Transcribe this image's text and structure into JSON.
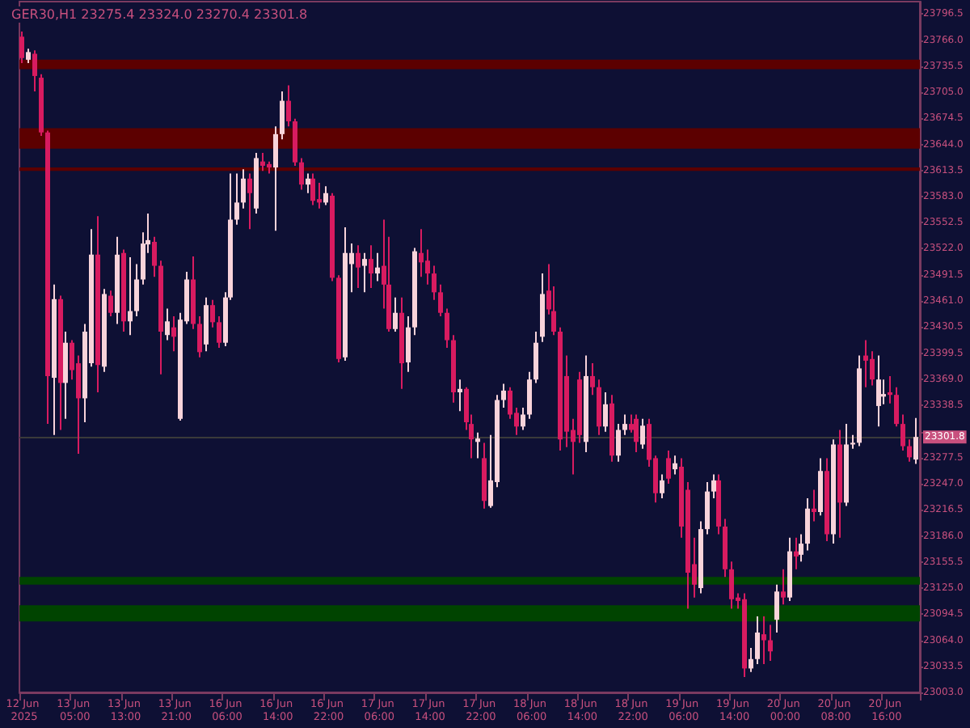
{
  "chart_data": {
    "type": "candlestick",
    "title": "GER30,H1 23275.4 23324.0 23270.4 23301.8",
    "categories": [
      "12 Jun 2025",
      null,
      null,
      null,
      null,
      null,
      null,
      null,
      "13 Jun 05:00",
      null,
      null,
      null,
      null,
      null,
      null,
      null,
      "13 Jun 13:00",
      null,
      null,
      null,
      null,
      null,
      null,
      null,
      "13 Jun 21:00",
      null,
      null,
      null,
      null,
      null,
      null,
      null,
      "16 Jun 06:00",
      null,
      null,
      null,
      null,
      null,
      null,
      null,
      "16 Jun 14:00",
      null,
      null,
      null,
      null,
      null,
      null,
      null,
      "16 Jun 22:00",
      null,
      null,
      null,
      null,
      null,
      null,
      null,
      "17 Jun 06:00",
      null,
      null,
      null,
      null,
      null,
      null,
      null,
      "17 Jun 14:00",
      null,
      null,
      null,
      null,
      null,
      null,
      null,
      "17 Jun 22:00",
      null,
      null,
      null,
      null,
      null,
      null,
      null,
      "18 Jun 06:00",
      null,
      null,
      null,
      null,
      null,
      null,
      null,
      "18 Jun 14:00",
      null,
      null,
      null,
      null,
      null,
      null,
      null,
      "18 Jun 22:00",
      null,
      null,
      null,
      null,
      null,
      null,
      null,
      "19 Jun 06:00",
      null,
      null,
      null,
      null,
      null,
      null,
      null,
      "19 Jun 14:00",
      null,
      null,
      null,
      null,
      null,
      null,
      null,
      "20 Jun 00:00",
      null,
      null,
      null,
      null,
      null,
      null,
      null,
      "20 Jun 08:00",
      null,
      null,
      null,
      null,
      null,
      null,
      null,
      "20 Jun 16:00",
      null,
      null,
      null,
      null,
      null
    ],
    "ohlc": [
      [
        23770,
        23776,
        23739,
        23745
      ],
      [
        23743,
        23756,
        23739,
        23752
      ],
      [
        23750,
        23754,
        23706,
        23724
      ],
      [
        23722,
        23726,
        23654,
        23658
      ],
      [
        23658,
        23660,
        23317,
        23373
      ],
      [
        23371,
        23480,
        23304,
        23463
      ],
      [
        23463,
        23467,
        23310,
        23365
      ],
      [
        23365,
        23425,
        23323,
        23412
      ],
      [
        23412,
        23415,
        23369,
        23380
      ],
      [
        23388,
        23397,
        23282,
        23347
      ],
      [
        23347,
        23434,
        23319,
        23425
      ],
      [
        23388,
        23545,
        23384,
        23515
      ],
      [
        23515,
        23560,
        23354,
        23386
      ],
      [
        23384,
        23475,
        23378,
        23469
      ],
      [
        23467,
        23473,
        23443,
        23447
      ],
      [
        23447,
        23536,
        23434,
        23515
      ],
      [
        23517,
        23521,
        23425,
        23437
      ],
      [
        23437,
        23512,
        23421,
        23449
      ],
      [
        23449,
        23504,
        23443,
        23486
      ],
      [
        23486,
        23541,
        23480,
        23528
      ],
      [
        23527,
        23563,
        23517,
        23532
      ],
      [
        23530,
        23536,
        23489,
        23502
      ],
      [
        23502,
        23508,
        23375,
        23425
      ],
      [
        23421,
        23452,
        23415,
        23437
      ],
      [
        23430,
        23443,
        23402,
        23419
      ],
      [
        23323,
        23447,
        23321,
        23439
      ],
      [
        23437,
        23495,
        23434,
        23486
      ],
      [
        23486,
        23513,
        23428,
        23434
      ],
      [
        23434,
        23443,
        23395,
        23401
      ],
      [
        23410,
        23465,
        23402,
        23456
      ],
      [
        23456,
        23462,
        23430,
        23436
      ],
      [
        23436,
        23443,
        23406,
        23412
      ],
      [
        23412,
        23471,
        23408,
        23465
      ],
      [
        23465,
        23610,
        23462,
        23556
      ],
      [
        23556,
        23610,
        23550,
        23576
      ],
      [
        23576,
        23615,
        23569,
        23604
      ],
      [
        23604,
        23610,
        23545,
        23587
      ],
      [
        23569,
        23634,
        23563,
        23628
      ],
      [
        23624,
        23634,
        23613,
        23619
      ],
      [
        23621,
        23624,
        23610,
        23617
      ],
      [
        23617,
        23665,
        23543,
        23656
      ],
      [
        23656,
        23706,
        23650,
        23695
      ],
      [
        23695,
        23713,
        23665,
        23671
      ],
      [
        23671,
        23674,
        23619,
        23623
      ],
      [
        23623,
        23628,
        23591,
        23597
      ],
      [
        23597,
        23610,
        23587,
        23604
      ],
      [
        23604,
        23610,
        23573,
        23578
      ],
      [
        23580,
        23599,
        23569,
        23576
      ],
      [
        23576,
        23595,
        23573,
        23587
      ],
      [
        23584,
        23587,
        23484,
        23488
      ],
      [
        23488,
        23491,
        23389,
        23393
      ],
      [
        23395,
        23547,
        23391,
        23517
      ],
      [
        23504,
        23528,
        23471,
        23517
      ],
      [
        23517,
        23526,
        23476,
        23500
      ],
      [
        23502,
        23517,
        23471,
        23510
      ],
      [
        23510,
        23526,
        23476,
        23493
      ],
      [
        23493,
        23517,
        23484,
        23500
      ],
      [
        23502,
        23556,
        23452,
        23480
      ],
      [
        23480,
        23536,
        23425,
        23428
      ],
      [
        23428,
        23465,
        23425,
        23447
      ],
      [
        23447,
        23465,
        23358,
        23388
      ],
      [
        23389,
        23443,
        23378,
        23430
      ],
      [
        23430,
        23523,
        23421,
        23519
      ],
      [
        23517,
        23545,
        23489,
        23506
      ],
      [
        23508,
        23521,
        23480,
        23493
      ],
      [
        23493,
        23502,
        23462,
        23471
      ],
      [
        23471,
        23480,
        23443,
        23447
      ],
      [
        23447,
        23452,
        23406,
        23415
      ],
      [
        23415,
        23421,
        23342,
        23354
      ],
      [
        23354,
        23369,
        23332,
        23358
      ],
      [
        23358,
        23360,
        23310,
        23319
      ],
      [
        23317,
        23328,
        23277,
        23299
      ],
      [
        23296,
        23307,
        23277,
        23300
      ],
      [
        23277,
        23295,
        23218,
        23227
      ],
      [
        23221,
        23304,
        23219,
        23251
      ],
      [
        23249,
        23351,
        23243,
        23345
      ],
      [
        23345,
        23364,
        23336,
        23356
      ],
      [
        23356,
        23360,
        23323,
        23328
      ],
      [
        23330,
        23336,
        23304,
        23314
      ],
      [
        23314,
        23336,
        23310,
        23328
      ],
      [
        23328,
        23378,
        23323,
        23369
      ],
      [
        23369,
        23425,
        23365,
        23412
      ],
      [
        23419,
        23493,
        23413,
        23469
      ],
      [
        23473,
        23504,
        23445,
        23451
      ],
      [
        23449,
        23478,
        23421,
        23425
      ],
      [
        23425,
        23430,
        23286,
        23299
      ],
      [
        23373,
        23397,
        23290,
        23308
      ],
      [
        23310,
        23323,
        23258,
        23296
      ],
      [
        23369,
        23378,
        23295,
        23304
      ],
      [
        23296,
        23397,
        23284,
        23373
      ],
      [
        23373,
        23388,
        23351,
        23360
      ],
      [
        23360,
        23369,
        23304,
        23314
      ],
      [
        23314,
        23354,
        23308,
        23340
      ],
      [
        23341,
        23351,
        23273,
        23280
      ],
      [
        23280,
        23317,
        23273,
        23310
      ],
      [
        23310,
        23328,
        23304,
        23317
      ],
      [
        23317,
        23328,
        23307,
        23310
      ],
      [
        23323,
        23328,
        23284,
        23296
      ],
      [
        23293,
        23323,
        23288,
        23315
      ],
      [
        23317,
        23323,
        23267,
        23275
      ],
      [
        23277,
        23280,
        23225,
        23236
      ],
      [
        23236,
        23258,
        23230,
        23251
      ],
      [
        23277,
        23286,
        23247,
        23253
      ],
      [
        23264,
        23280,
        23258,
        23271
      ],
      [
        23267,
        23277,
        23184,
        23197
      ],
      [
        23240,
        23249,
        23101,
        23143
      ],
      [
        23153,
        23184,
        23114,
        23129
      ],
      [
        23125,
        23203,
        23119,
        23194
      ],
      [
        23194,
        23249,
        23188,
        23238
      ],
      [
        23238,
        23258,
        23230,
        23251
      ],
      [
        23251,
        23258,
        23188,
        23197
      ],
      [
        23197,
        23206,
        23138,
        23147
      ],
      [
        23147,
        23156,
        23101,
        23112
      ],
      [
        23114,
        23119,
        23101,
        23110
      ],
      [
        23112,
        23119,
        23021,
        23031
      ],
      [
        23031,
        23055,
        23027,
        23042
      ],
      [
        23042,
        23092,
        23036,
        23073
      ],
      [
        23071,
        23092,
        23036,
        23064
      ],
      [
        23064,
        23082,
        23040,
        23051
      ],
      [
        23088,
        23129,
        23073,
        23121
      ],
      [
        23121,
        23147,
        23106,
        23114
      ],
      [
        23114,
        23184,
        23110,
        23168
      ],
      [
        23168,
        23184,
        23147,
        23162
      ],
      [
        23164,
        23188,
        23156,
        23177
      ],
      [
        23177,
        23230,
        23169,
        23218
      ],
      [
        23218,
        23240,
        23203,
        23214
      ],
      [
        23214,
        23277,
        23210,
        23262
      ],
      [
        23262,
        23277,
        23180,
        23188
      ],
      [
        23188,
        23299,
        23177,
        23293
      ],
      [
        23293,
        23310,
        23184,
        23225
      ],
      [
        23225,
        23317,
        23221,
        23293
      ],
      [
        23293,
        23304,
        23288,
        23295
      ],
      [
        23295,
        23397,
        23291,
        23382
      ],
      [
        23397,
        23415,
        23360,
        23391
      ],
      [
        23393,
        23402,
        23362,
        23369
      ],
      [
        23338,
        23397,
        23314,
        23369
      ],
      [
        23349,
        23369,
        23340,
        23352
      ],
      [
        23354,
        23373,
        23341,
        23351
      ],
      [
        23351,
        23360,
        23314,
        23317
      ],
      [
        23317,
        23328,
        23286,
        23291
      ],
      [
        23291,
        23299,
        23273,
        23278
      ],
      [
        23275.4,
        23324.0,
        23270.4,
        23301.8
      ]
    ],
    "colors": [
      "#d81b60",
      "#f8d3da",
      "#d81b60",
      "#d81b60",
      "#d81b60",
      "#f8d3da",
      "#d81b60",
      "#f8d3da",
      "#d81b60",
      "#d81b60",
      "#f8d3da",
      "#f8d3da",
      "#d81b60",
      "#f8d3da",
      "#d81b60",
      "#f8d3da",
      "#d81b60",
      "#f8d3da",
      "#f8d3da",
      "#f8d3da",
      "#f8d3da",
      "#d81b60",
      "#d81b60",
      "#f8d3da",
      "#d81b60",
      "#f8d3da",
      "#f8d3da",
      "#d81b60",
      "#d81b60",
      "#f8d3da",
      "#d81b60",
      "#d81b60",
      "#f8d3da",
      "#f8d3da",
      "#f8d3da",
      "#f8d3da",
      "#d81b60",
      "#f8d3da",
      "#d81b60",
      "#d81b60",
      "#f8d3da",
      "#f8d3da",
      "#d81b60",
      "#d81b60",
      "#d81b60",
      "#f8d3da",
      "#d81b60",
      "#d81b60",
      "#f8d3da",
      "#d81b60",
      "#d81b60",
      "#f8d3da",
      "#f8d3da",
      "#d81b60",
      "#f8d3da",
      "#d81b60",
      "#f8d3da",
      "#d81b60",
      "#d81b60",
      "#f8d3da",
      "#d81b60",
      "#f8d3da",
      "#f8d3da",
      "#d81b60",
      "#d81b60",
      "#d81b60",
      "#d81b60",
      "#d81b60",
      "#d81b60",
      "#f8d3da",
      "#d81b60",
      "#d81b60",
      "#f8d3da",
      "#d81b60",
      "#f8d3da",
      "#f8d3da",
      "#f8d3da",
      "#d81b60",
      "#d81b60",
      "#f8d3da",
      "#f8d3da",
      "#f8d3da",
      "#f8d3da",
      "#d81b60",
      "#d81b60",
      "#d81b60",
      "#d81b60",
      "#d81b60",
      "#d81b60",
      "#f8d3da",
      "#d81b60",
      "#d81b60",
      "#f8d3da",
      "#d81b60",
      "#f8d3da",
      "#f8d3da",
      "#d81b60",
      "#d81b60",
      "#f8d3da",
      "#d81b60",
      "#d81b60",
      "#f8d3da",
      "#d81b60",
      "#f8d3da",
      "#d81b60",
      "#d81b60",
      "#d81b60",
      "#f8d3da",
      "#f8d3da",
      "#f8d3da",
      "#d81b60",
      "#d81b60",
      "#d81b60",
      "#d81b60",
      "#d81b60",
      "#f8d3da",
      "#f8d3da",
      "#d81b60",
      "#d81b60",
      "#f8d3da",
      "#d81b60",
      "#f8d3da",
      "#d81b60",
      "#f8d3da",
      "#f8d3da",
      "#d81b60",
      "#f8d3da",
      "#d81b60",
      "#f8d3da",
      "#d81b60",
      "#f8d3da",
      "#f8d3da",
      "#f8d3da",
      "#d81b60",
      "#d81b60",
      "#f8d3da",
      "#f8d3da",
      "#d81b60",
      "#d81b60",
      "#d81b60",
      "#d81b60",
      "#f8d3da"
    ],
    "ylim": [
      23003.0,
      23811.0
    ],
    "yticks": [
      {
        "value": 23003,
        "label": "23003.0"
      },
      23033.5,
      {
        "value": 23064,
        "label": "23064.0"
      },
      23094.5,
      {
        "value": 23125,
        "label": "23125.0"
      },
      23155.5,
      {
        "value": 23186,
        "label": "23186.0"
      },
      23216.5,
      {
        "value": 23247,
        "label": "23247.0"
      },
      23277.5,
      {
        "value": 23308,
        "label": null
      },
      23338.5,
      {
        "value": 23369,
        "label": "23369.0"
      },
      23399.5,
      23430.5,
      {
        "value": 23461,
        "label": "23461.0"
      },
      23491.5,
      {
        "value": 23522,
        "label": "23522.0"
      },
      23552.5,
      {
        "value": 23583,
        "label": "23583.0"
      },
      23613.5,
      {
        "value": 23644,
        "label": "23644.0"
      },
      23674.5,
      {
        "value": 23705,
        "label": "23705.0"
      },
      23735.5,
      {
        "value": 23766,
        "label": "23766.0"
      },
      23796.5
    ],
    "bands": [
      {
        "axis": "y",
        "from": 23732,
        "to": 23743,
        "color": "#5c0000"
      },
      {
        "axis": "y",
        "from": 23639,
        "to": 23663,
        "color": "#5c0000"
      },
      {
        "axis": "y",
        "from": 23613,
        "to": 23617,
        "color": "#5c0000"
      },
      {
        "axis": "y",
        "from": 23129,
        "to": 23138,
        "color": "#004400"
      },
      {
        "axis": "y",
        "from": 23086,
        "to": 23105,
        "color": "#004400"
      }
    ],
    "ref_lines": [
      {
        "axis": "y",
        "value": 23301.8,
        "label": "23301.8",
        "color": "#3a3a3a"
      }
    ],
    "grid": false
  }
}
